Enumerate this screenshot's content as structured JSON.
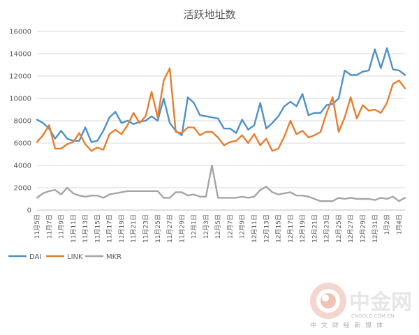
{
  "chart_data": {
    "type": "line",
    "title": "活跃地址数",
    "xlabel": "",
    "ylabel": "",
    "ylim": [
      0,
      16000
    ],
    "yticks": [
      0,
      2000,
      4000,
      6000,
      8000,
      10000,
      12000,
      14000,
      16000
    ],
    "grid": "horizontal",
    "legend": "bottom-left",
    "categories": [
      "11月5日",
      "11月6日",
      "11月7日",
      "11月8日",
      "11月9日",
      "11月10日",
      "11月11日",
      "11月12日",
      "11月13日",
      "11月14日",
      "11月15日",
      "11月16日",
      "11月17日",
      "11月18日",
      "11月19日",
      "11月20日",
      "11月21日",
      "11月22日",
      "11月23日",
      "11月24日",
      "11月25日",
      "11月26日",
      "11月27日",
      "11月28日",
      "11月29日",
      "11月30日",
      "12月1日",
      "12月2日",
      "12月3日",
      "12月4日",
      "12月5日",
      "12月6日",
      "12月7日",
      "12月8日",
      "12月9日",
      "12月10日",
      "12月11日",
      "12月12日",
      "12月13日",
      "12月14日",
      "12月15日",
      "12月16日",
      "12月17日",
      "12月18日",
      "12月19日",
      "12月20日",
      "12月21日",
      "12月22日",
      "12月23日",
      "12月24日",
      "12月25日",
      "12月26日",
      "12月27日",
      "12月28日",
      "12月29日",
      "12月30日",
      "12月31日",
      "1月1日",
      "1月2日",
      "1月3日",
      "1月4日",
      "1月5日"
    ],
    "tick_labels": [
      "11月5日",
      "11月7日",
      "11月9日",
      "11月11日",
      "11月13日",
      "11月15日",
      "11月17日",
      "11月19日",
      "11月21日",
      "11月23日",
      "11月25日",
      "11月27日",
      "11月29日",
      "12月1日",
      "12月3日",
      "12月5日",
      "12月7日",
      "12月9日",
      "12月11日",
      "12月13日",
      "12月15日",
      "12月17日",
      "12月19日",
      "12月21日",
      "12月23日",
      "12月25日",
      "12月27日",
      "12月29日",
      "12月31日",
      "1月2日",
      "1月4日"
    ],
    "series": [
      {
        "name": "DAI",
        "color": "#4e91c6",
        "values": [
          8100,
          7800,
          7300,
          6400,
          7100,
          6400,
          6200,
          6200,
          7400,
          6100,
          6200,
          7100,
          8300,
          8800,
          7800,
          8000,
          7700,
          7900,
          8000,
          8400,
          8000,
          10000,
          7800,
          7100,
          6700,
          10100,
          9600,
          8500,
          8400,
          8300,
          8200,
          7300,
          7300,
          6900,
          8100,
          7200,
          7600,
          9600,
          7300,
          7800,
          8400,
          9300,
          9700,
          9300,
          10400,
          8500,
          8700,
          8700,
          9400,
          9500,
          10000,
          12500,
          12100,
          12100,
          12400,
          12500,
          14400,
          12700,
          14500,
          12600,
          12500,
          12100
        ]
      },
      {
        "name": "LINK",
        "color": "#e67e2e",
        "values": [
          6100,
          6700,
          7600,
          5500,
          5500,
          5900,
          6100,
          6900,
          5900,
          5300,
          5600,
          5400,
          6800,
          7200,
          6800,
          7600,
          8700,
          7800,
          8400,
          10600,
          8300,
          11600,
          12700,
          7000,
          6900,
          7400,
          7400,
          6700,
          7000,
          7000,
          6500,
          5800,
          6100,
          6200,
          6700,
          6000,
          6800,
          5800,
          6400,
          5300,
          5500,
          6600,
          8000,
          6800,
          7100,
          6500,
          6700,
          7000,
          8700,
          10100,
          7000,
          8300,
          10100,
          8200,
          9400,
          8900,
          9000,
          8700,
          9600,
          11300,
          11600,
          10900
        ]
      },
      {
        "name": "MKR",
        "color": "#a5a5a5",
        "values": [
          1100,
          1500,
          1700,
          1800,
          1400,
          2000,
          1500,
          1300,
          1200,
          1300,
          1300,
          1100,
          1400,
          1500,
          1600,
          1700,
          1700,
          1700,
          1700,
          1700,
          1700,
          1100,
          1100,
          1600,
          1600,
          1300,
          1400,
          1200,
          1200,
          4000,
          1100,
          1100,
          1100,
          1100,
          1200,
          1100,
          1200,
          1800,
          2100,
          1600,
          1400,
          1500,
          1600,
          1300,
          1300,
          1200,
          1000,
          800,
          800,
          800,
          1100,
          1000,
          1100,
          1000,
          1000,
          1000,
          900,
          1100,
          1000,
          1200,
          800,
          1100
        ]
      }
    ]
  },
  "watermark": {
    "brand": "中金网",
    "site": "CNGOLD.COM.CN",
    "tagline": "中 文 财 经 新 媒 体"
  }
}
